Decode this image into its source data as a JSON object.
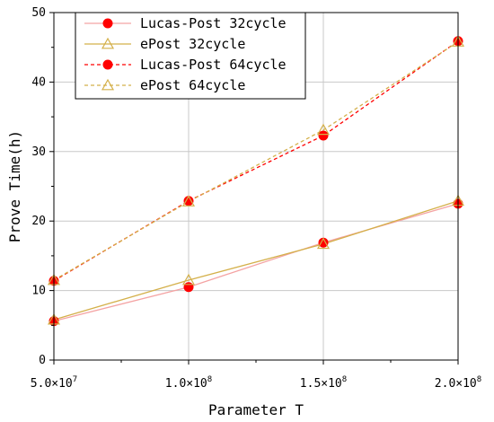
{
  "chart_data": {
    "type": "line",
    "title": "",
    "xlabel": "Parameter T",
    "ylabel": "Prove Time(h)",
    "xlim": [
      50000000,
      200000000
    ],
    "ylim": [
      0,
      50
    ],
    "grid": true,
    "legend_position": "top-left",
    "x_ticks": [
      50000000,
      100000000,
      150000000,
      200000000
    ],
    "x_tick_labels": [
      {
        "mantissa": "5.0",
        "exponent": "7"
      },
      {
        "mantissa": "1.0",
        "exponent": "8"
      },
      {
        "mantissa": "1.5",
        "exponent": "8"
      },
      {
        "mantissa": "2.0",
        "exponent": "8"
      }
    ],
    "y_ticks": [
      0,
      10,
      20,
      30,
      40,
      50
    ],
    "y_tick_labels": [
      "0",
      "10",
      "20",
      "30",
      "40",
      "50"
    ],
    "x": [
      50000000,
      100000000,
      150000000,
      200000000
    ],
    "series": [
      {
        "name": "Lucas-Post 32cycle",
        "values": [
          5.6,
          10.5,
          16.9,
          22.5
        ],
        "color": "#ff0000",
        "line_color": "#f4a3a3",
        "marker": "circle",
        "dashed": false
      },
      {
        "name": "ePost 32cycle",
        "values": [
          5.8,
          11.5,
          16.7,
          22.9
        ],
        "color": "#d4b04a",
        "line_color": "#d4b04a",
        "marker": "triangle",
        "dashed": false
      },
      {
        "name": "Lucas-Post 64cycle",
        "values": [
          11.4,
          22.9,
          32.3,
          45.9
        ],
        "color": "#ff0000",
        "line_color": "#ff0000",
        "marker": "circle",
        "dashed": true
      },
      {
        "name": "ePost 64cycle",
        "values": [
          11.5,
          22.8,
          33.1,
          45.8
        ],
        "color": "#d4b04a",
        "line_color": "#d4b04a",
        "marker": "triangle",
        "dashed": true
      }
    ]
  }
}
